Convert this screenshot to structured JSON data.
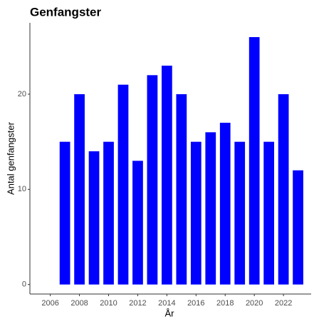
{
  "chart_data": {
    "type": "bar",
    "title": "Genfangster",
    "x_label": "År",
    "y_label": "Antal genfangster",
    "x": [
      2007,
      2008,
      2009,
      2010,
      2011,
      2012,
      2013,
      2014,
      2015,
      2016,
      2017,
      2018,
      2019,
      2020,
      2021,
      2022,
      2023
    ],
    "values": [
      15,
      20,
      14,
      15,
      21,
      13,
      22,
      23,
      20,
      15,
      16,
      17,
      15,
      26,
      15,
      20,
      12
    ],
    "color": "#0000ff",
    "xlim": [
      2004.6,
      2023.9
    ],
    "xticks": [
      2006,
      2008,
      2010,
      2012,
      2014,
      2016,
      2018,
      2020,
      2022
    ],
    "ylim": [
      -1,
      27.5
    ],
    "yticks": [
      0,
      10,
      20
    ],
    "grid": false
  }
}
